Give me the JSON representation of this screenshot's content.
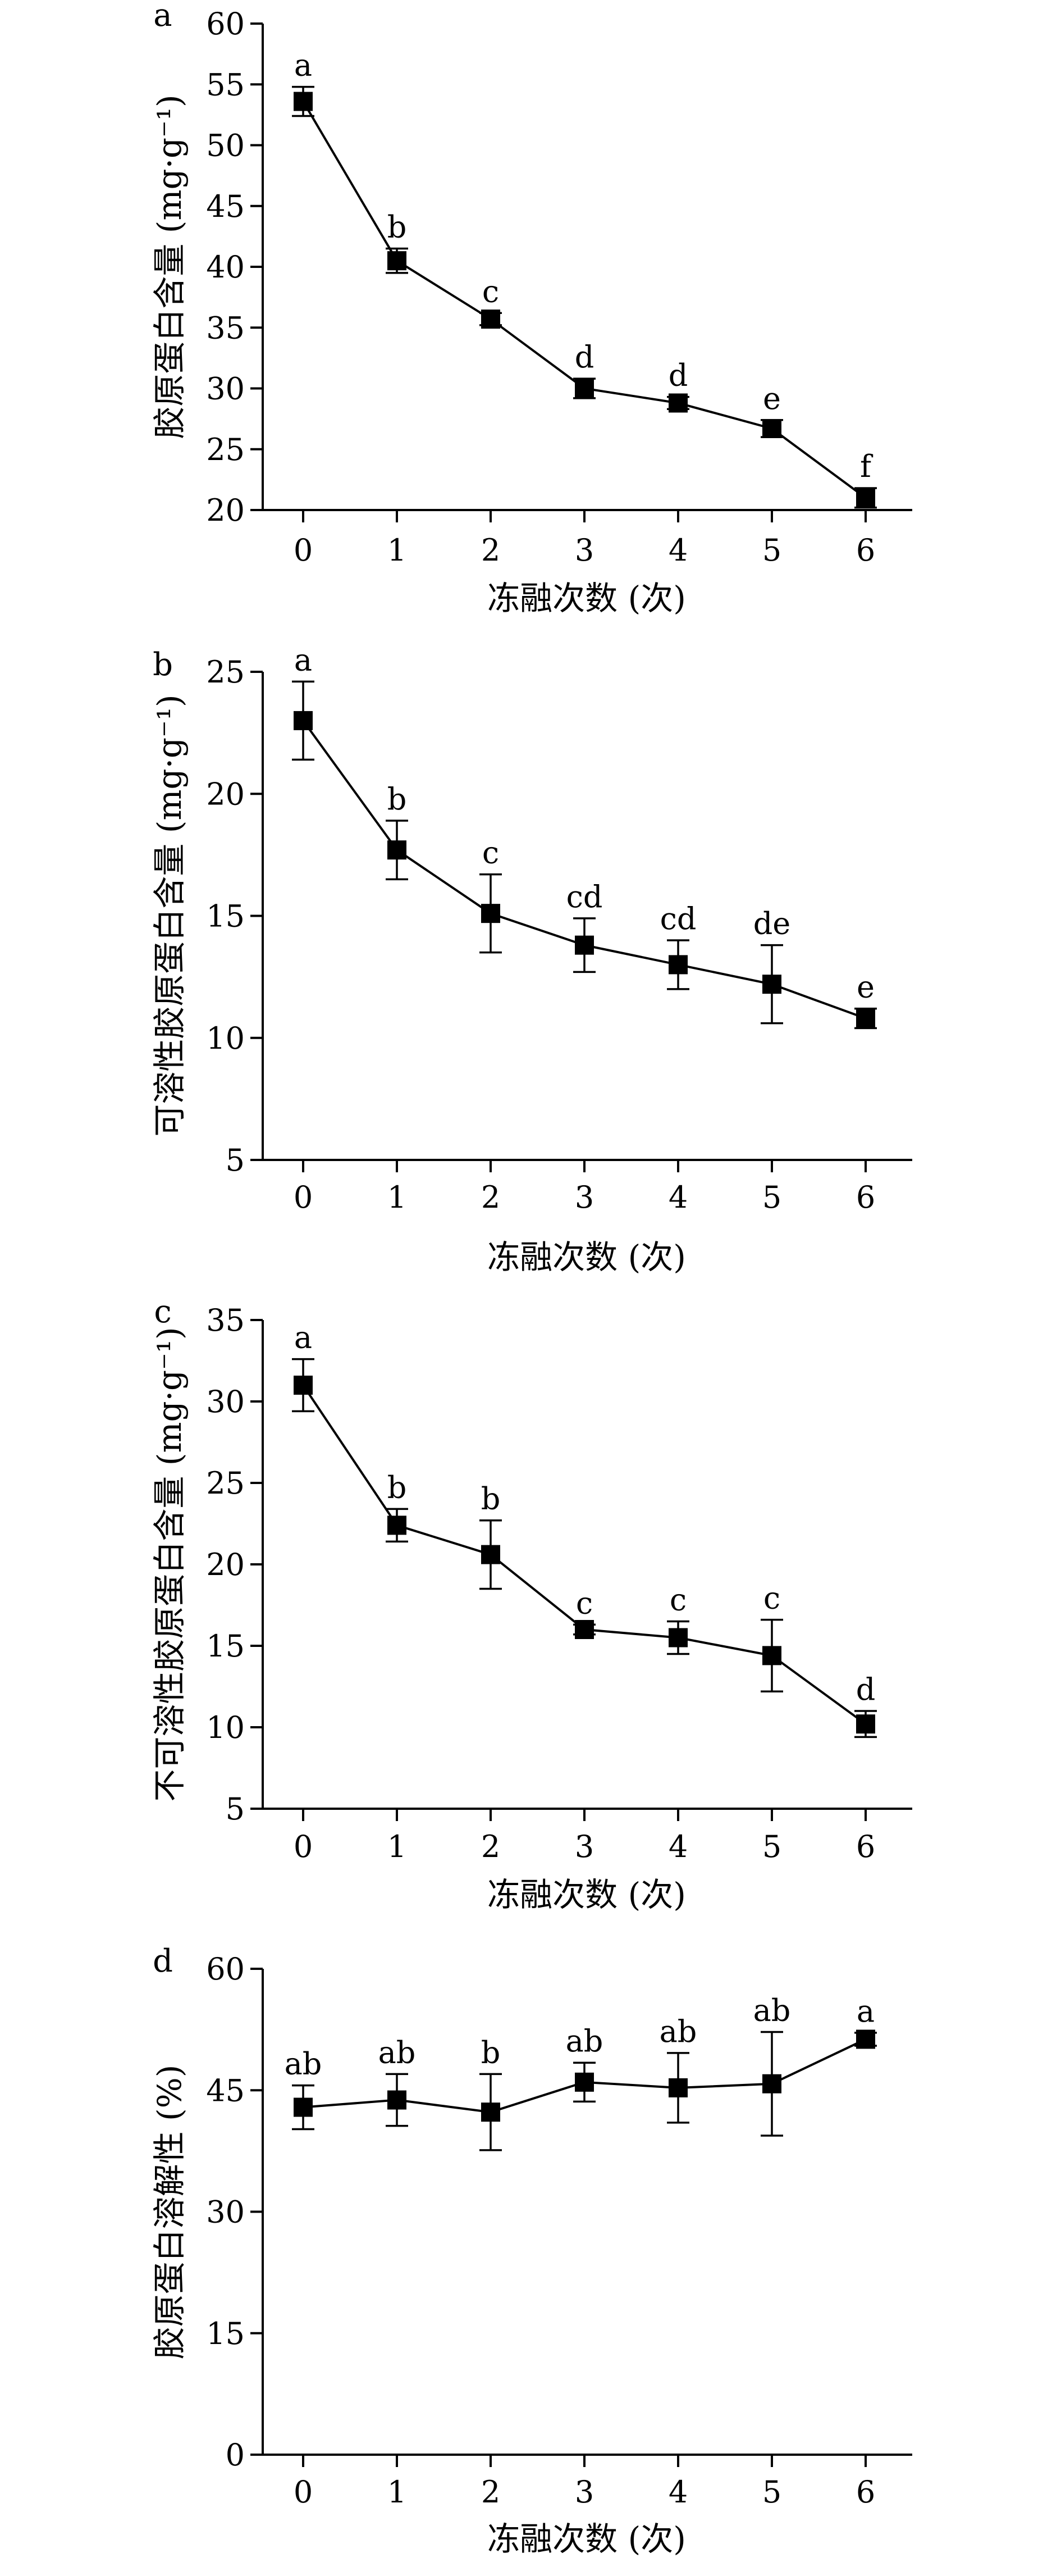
{
  "chart_data": [
    {
      "panel": "a",
      "type": "line",
      "x": [
        0,
        1,
        2,
        3,
        4,
        5,
        6
      ],
      "xlabel": "冻融次数 (次)",
      "ylabel": "胶原蛋白含量 (mg·g⁻¹)",
      "ylim": [
        20,
        60
      ],
      "yticks": [
        20,
        25,
        30,
        35,
        40,
        45,
        50,
        55,
        60
      ],
      "series": [
        {
          "values": [
            53.6,
            40.5,
            35.7,
            30.0,
            28.8,
            26.7,
            21.0
          ],
          "errors": [
            1.2,
            1.0,
            0.5,
            0.8,
            0.5,
            0.7,
            0.8
          ],
          "letters": [
            "a",
            "b",
            "c",
            "d",
            "d",
            "e",
            "f"
          ]
        }
      ]
    },
    {
      "panel": "b",
      "type": "line",
      "x": [
        0,
        1,
        2,
        3,
        4,
        5,
        6
      ],
      "xlabel": "冻融次数 (次)",
      "ylabel": "可溶性胶原蛋白含量 (mg·g⁻¹)",
      "ylim": [
        5,
        25
      ],
      "yticks": [
        5,
        10,
        15,
        20,
        25
      ],
      "series": [
        {
          "values": [
            23.0,
            17.7,
            15.1,
            13.8,
            13.0,
            12.2,
            10.8
          ],
          "errors": [
            1.6,
            1.2,
            1.6,
            1.1,
            1.0,
            1.6,
            0.4
          ],
          "letters": [
            "a",
            "b",
            "c",
            "cd",
            "cd",
            "de",
            "e"
          ]
        }
      ]
    },
    {
      "panel": "c",
      "type": "line",
      "x": [
        0,
        1,
        2,
        3,
        4,
        5,
        6
      ],
      "xlabel": "冻融次数 (次)",
      "ylabel": "不可溶性胶原蛋白含量 (mg·g⁻¹)",
      "ylim": [
        5,
        35
      ],
      "yticks": [
        5,
        10,
        15,
        20,
        25,
        30,
        35
      ],
      "series": [
        {
          "values": [
            31.0,
            22.4,
            20.6,
            16.0,
            15.5,
            14.4,
            10.2
          ],
          "errors": [
            1.6,
            1.0,
            2.1,
            0.3,
            1.0,
            2.2,
            0.8
          ],
          "letters": [
            "a",
            "b",
            "b",
            "c",
            "c",
            "c",
            "d"
          ]
        }
      ]
    },
    {
      "panel": "d",
      "type": "line",
      "x": [
        0,
        1,
        2,
        3,
        4,
        5,
        6
      ],
      "xlabel": "冻融次数 (次)",
      "ylabel": "胶原蛋白溶解性 (%)",
      "ylim": [
        0,
        60
      ],
      "yticks": [
        0,
        15,
        30,
        45,
        60
      ],
      "series": [
        {
          "values": [
            42.9,
            43.8,
            42.3,
            46.0,
            45.3,
            45.8,
            51.3
          ],
          "errors": [
            2.7,
            3.2,
            4.7,
            2.4,
            4.3,
            6.4,
            0.8
          ],
          "letters": [
            "ab",
            "ab",
            "b",
            "ab",
            "ab",
            "ab",
            "a"
          ]
        }
      ]
    }
  ]
}
